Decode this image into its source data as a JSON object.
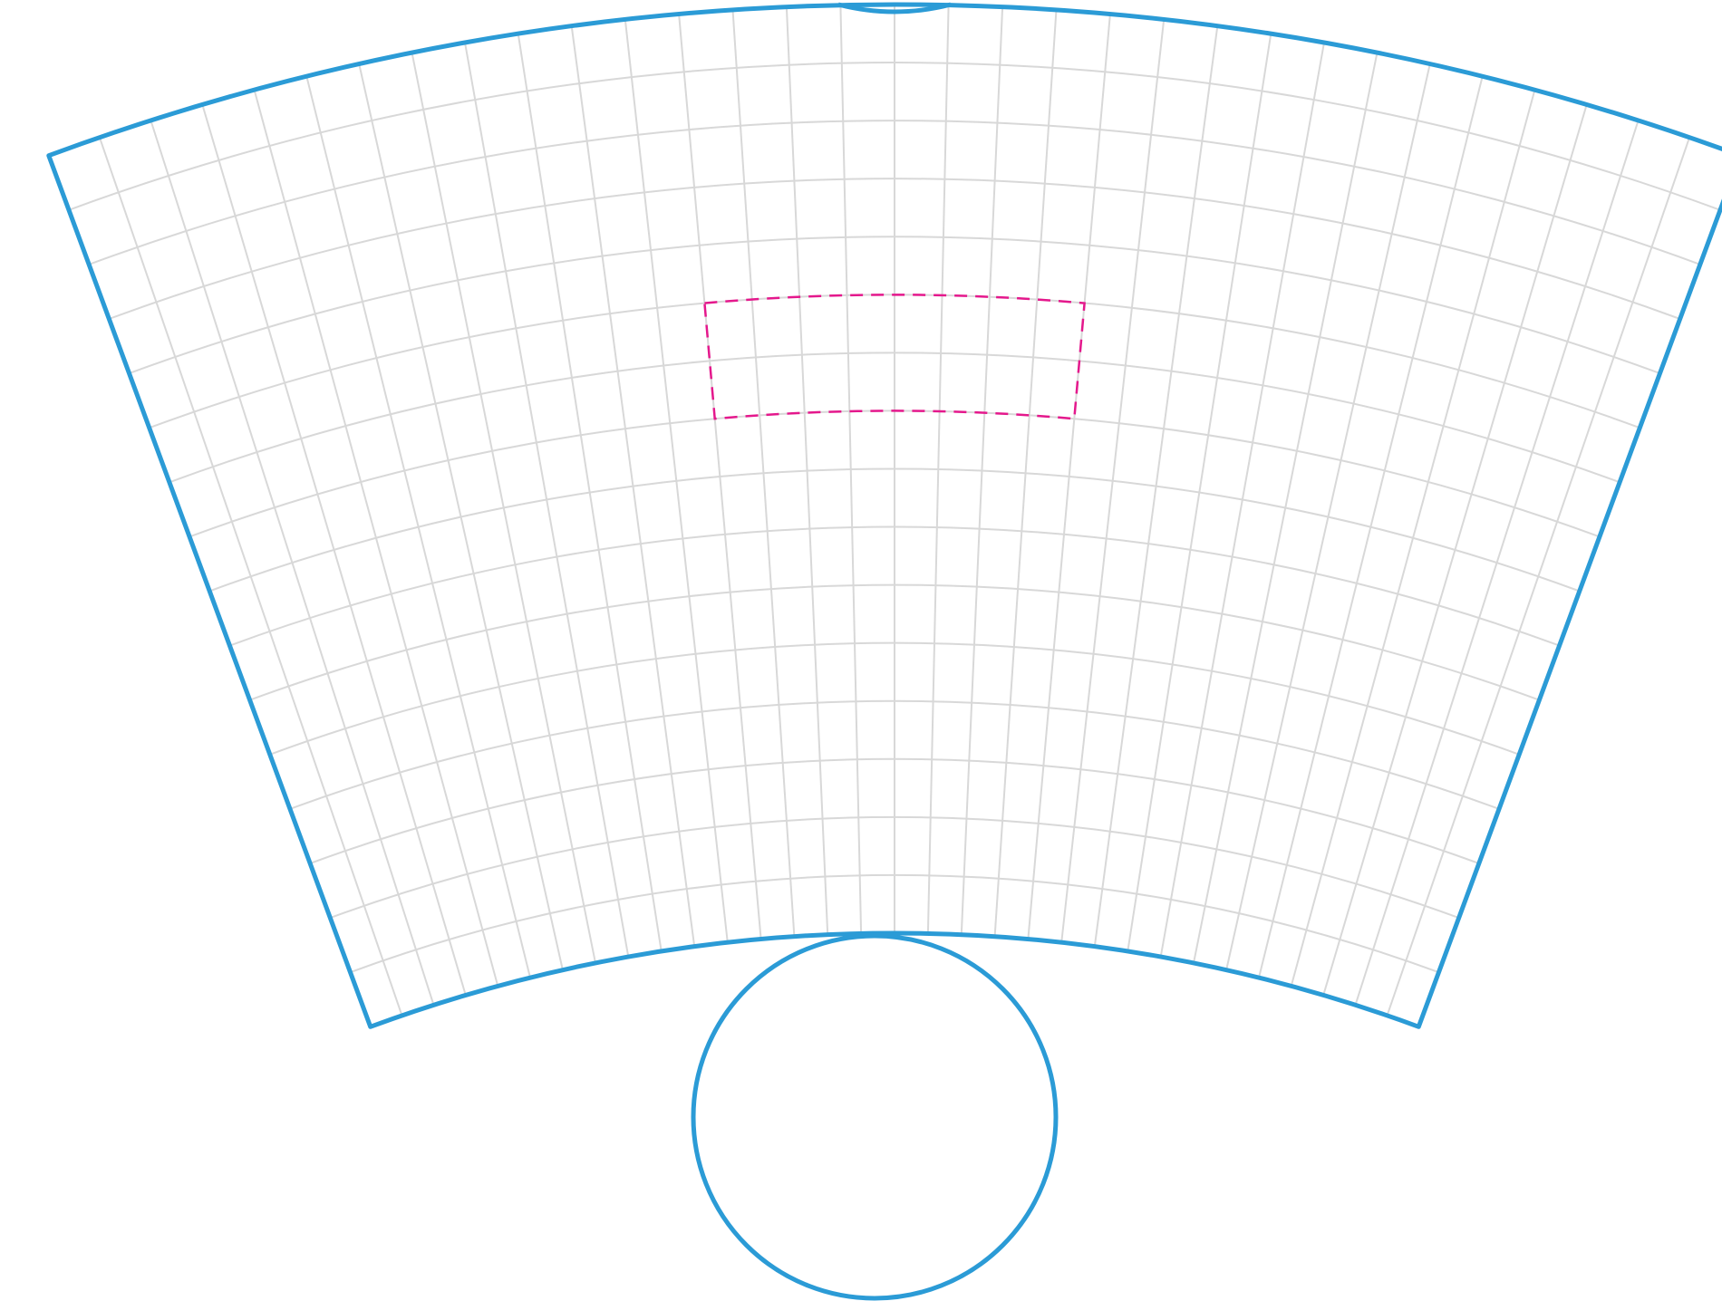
{
  "diagram": {
    "type": "cup-sleeve-template",
    "grid": {
      "radial_lines": 32,
      "concentric_arcs": 15
    },
    "highlight_cell": {
      "first_arc": 5,
      "last_arc": 7,
      "first_radial": 12,
      "last_radial": 20
    },
    "base_circle": true
  },
  "colors": {
    "outline": "#2b9bd6",
    "grid": "#d8d8d8",
    "highlight": "#e4188c",
    "background": "#ffffff"
  }
}
